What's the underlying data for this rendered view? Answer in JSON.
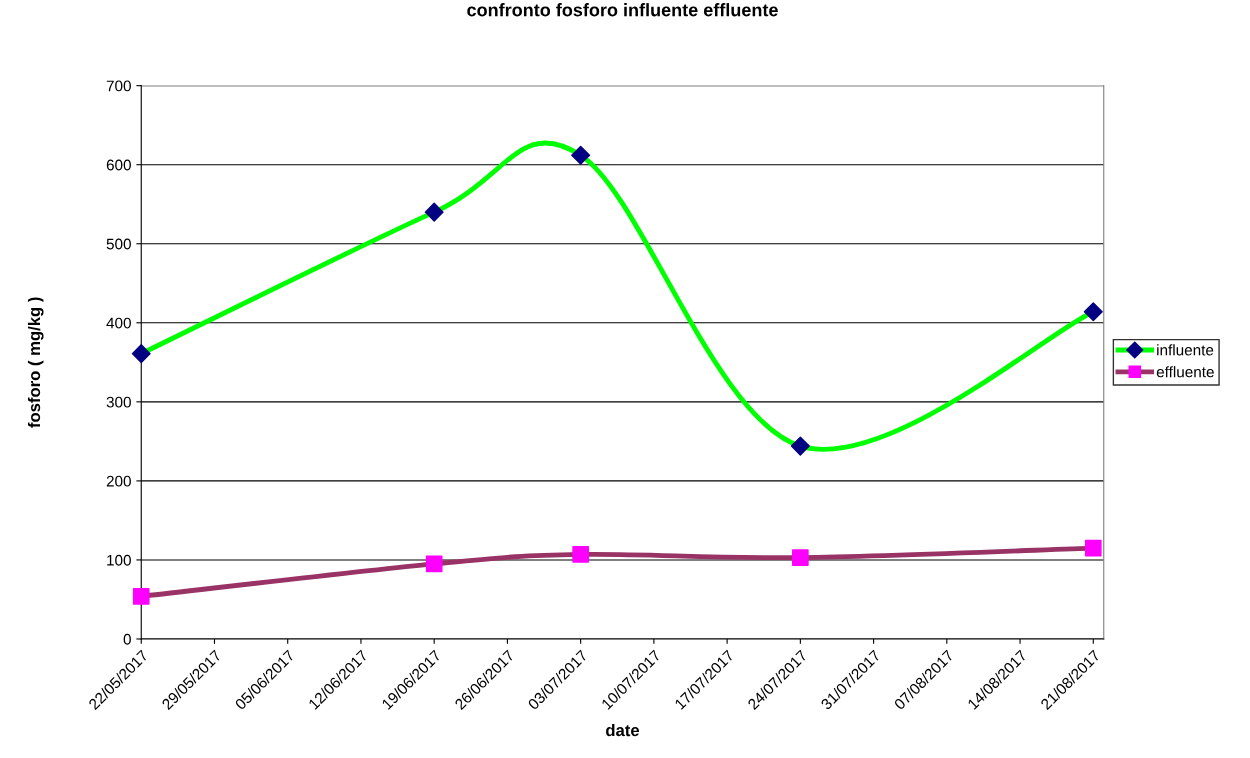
{
  "chart_data": {
    "type": "line",
    "title": "confronto fosforo influente effluente",
    "xlabel": "date",
    "ylabel": "fosforo ( mg/kg )",
    "x": [
      "2017-05-22",
      "2017-06-19",
      "2017-07-03",
      "2017-07-24",
      "2017-08-21"
    ],
    "series": [
      {
        "name": "influente",
        "color": "#00ff00",
        "marker": "diamond",
        "colors": [
          "#000080",
          "#000080",
          "#000080",
          "#000080",
          "#000080"
        ],
        "values": [
          361,
          540,
          612,
          244,
          414
        ]
      },
      {
        "name": "effluente",
        "color": "#993366",
        "marker": "square",
        "colors": [
          "#ff00ff",
          "#ff00ff",
          "#ff00ff",
          "#ff00ff",
          "#ff00ff"
        ],
        "values": [
          54,
          95,
          107,
          103,
          115
        ]
      }
    ],
    "xlim": [
      "2017-05-22",
      "2017-08-22"
    ],
    "xticks": [
      {
        "value": "2017-05-22",
        "label": "22/05/2017"
      },
      {
        "value": "2017-05-29",
        "label": "29/05/2017"
      },
      {
        "value": "2017-06-05",
        "label": "05/06/2017"
      },
      {
        "value": "2017-06-12",
        "label": "12/06/2017"
      },
      {
        "value": "2017-06-19",
        "label": "19/06/2017"
      },
      {
        "value": "2017-06-26",
        "label": "26/06/2017"
      },
      {
        "value": "2017-07-03",
        "label": "03/07/2017"
      },
      {
        "value": "2017-07-10",
        "label": "10/07/2017"
      },
      {
        "value": "2017-07-17",
        "label": "17/07/2017"
      },
      {
        "value": "2017-07-24",
        "label": "24/07/2017"
      },
      {
        "value": "2017-07-31",
        "label": "31/07/2017"
      },
      {
        "value": "2017-08-07",
        "label": "07/08/2017"
      },
      {
        "value": "2017-08-14",
        "label": "14/08/2017"
      },
      {
        "value": "2017-08-21",
        "label": "21/08/2017"
      }
    ],
    "ylim": [
      0,
      700
    ],
    "yticks": [
      0,
      100,
      200,
      300,
      400,
      500,
      600,
      700
    ],
    "grid": "y",
    "legend": "right",
    "line_style": "solid"
  }
}
